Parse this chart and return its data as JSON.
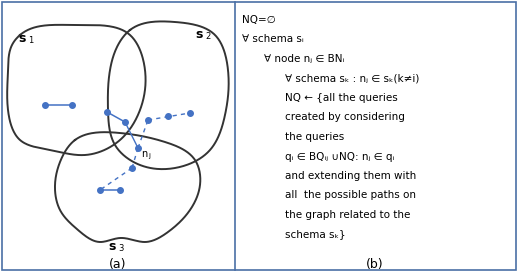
{
  "fig_width": 5.18,
  "fig_height": 2.72,
  "dpi": 100,
  "border_color": "#4a6fa5",
  "background_color": "#ffffff",
  "left_label": "(a)",
  "right_label": "(b)",
  "s1_label": "s",
  "s1_sub": "1",
  "s2_label": "s",
  "s2_sub": "2",
  "s3_label": "s",
  "s3_sub": "3",
  "nj_label": "n",
  "nj_sub": "j",
  "node_color": "#4472C4",
  "blob_color": "#333333",
  "algo_lines": [
    [
      "NQ=∅",
      0
    ],
    [
      "∀ schema sᵢ",
      0
    ],
    [
      "∀ node nⱼ ∈ BNᵢ",
      1
    ],
    [
      "∀ schema sₖ : nⱼ ∈ sₖ(k≠i)",
      2
    ],
    [
      "NQ ← {all the queries",
      2
    ],
    [
      "created by considering",
      2
    ],
    [
      "the queries",
      2
    ],
    [
      "qᵢ ∈ BQᵢⱼ ∪NQ: nⱼ ∈ qᵢ",
      2
    ],
    [
      "and extending them with",
      2
    ],
    [
      "all  the possible paths on",
      2
    ],
    [
      "the graph related to the",
      2
    ],
    [
      "schema sₖ}",
      2
    ]
  ]
}
